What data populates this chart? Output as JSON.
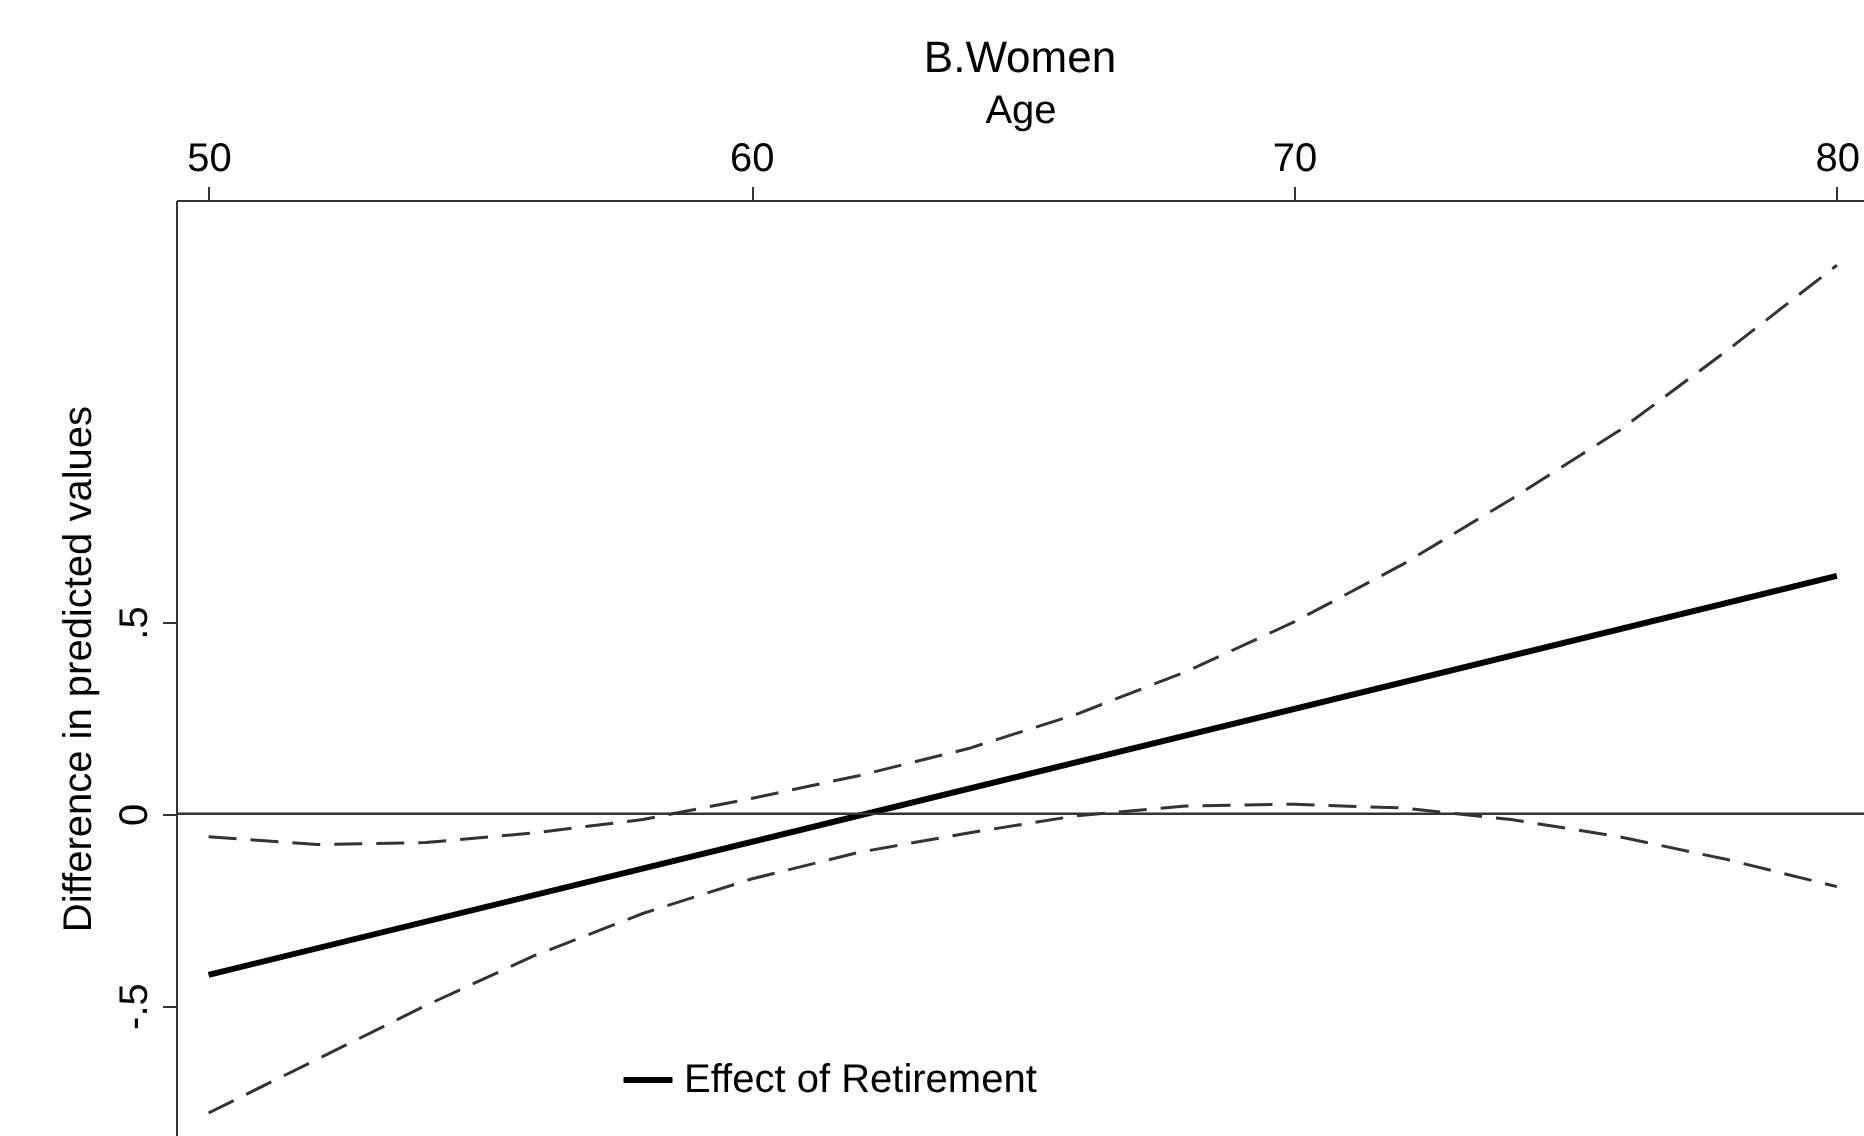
{
  "chart_data": {
    "type": "line",
    "title": "B.Women",
    "xlabel": "Age",
    "ylabel": "Difference in predicted values",
    "x": [
      50,
      52,
      54,
      56,
      58,
      60,
      62,
      64,
      66,
      68,
      70,
      72,
      74,
      76,
      78,
      80
    ],
    "series": [
      {
        "name": "Effect of Retirement",
        "color": "#000000",
        "line_style": "solid",
        "x": [
          50,
          80
        ],
        "values": [
          -0.42,
          0.62
        ]
      },
      {
        "color": "#333333",
        "line_style": "dashed",
        "values": [
          -0.06,
          -0.08,
          -0.075,
          -0.05,
          -0.015,
          0.04,
          0.1,
          0.17,
          0.26,
          0.37,
          0.5,
          0.65,
          0.82,
          1.0,
          1.21,
          1.43
        ]
      },
      {
        "color": "#333333",
        "line_style": "dashed",
        "values": [
          -0.78,
          -0.64,
          -0.5,
          -0.37,
          -0.26,
          -0.17,
          -0.1,
          -0.05,
          -0.005,
          0.02,
          0.025,
          0.015,
          -0.015,
          -0.06,
          -0.12,
          -0.19
        ]
      }
    ],
    "xlim": [
      49.4,
      80.5
    ],
    "xticks": [
      50,
      60,
      70,
      80
    ],
    "ylim": [
      -0.84,
      1.6
    ],
    "yticks": [
      {
        "value": -0.5,
        "label": "-.5"
      },
      0,
      {
        "value": 0.5,
        "label": ".5"
      }
    ],
    "ref_lines": [
      {
        "axis": "y",
        "value": 0,
        "color": "#333333"
      }
    ],
    "grid": false,
    "legend": "bottom",
    "marker": "none"
  }
}
